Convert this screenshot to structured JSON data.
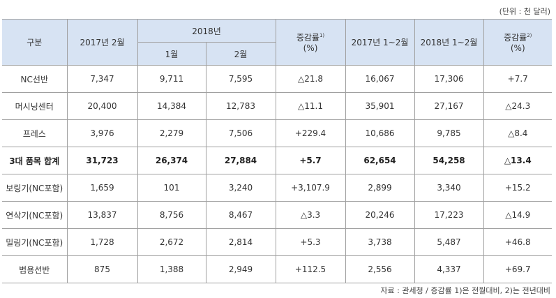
{
  "unit": "(단위 : 천 달러)",
  "headers": {
    "category": "구분",
    "feb2017": "2017년 2월",
    "y2018": "2018년",
    "jan": "1월",
    "feb": "2월",
    "change1": "증감률",
    "change1_sup": "1)",
    "pct": "(%)",
    "janfeb2017": "2017년 1~2월",
    "janfeb2018": "2018년 1~2월",
    "change2": "증감률",
    "change2_sup": "2)"
  },
  "rows": [
    [
      "NC선반",
      "7,347",
      "9,711",
      "7,595",
      "△21.8",
      "16,067",
      "17,306",
      "+7.7"
    ],
    [
      "머시닝센터",
      "20,400",
      "14,384",
      "12,783",
      "△11.1",
      "35,901",
      "27,167",
      "△24.3"
    ],
    [
      "프레스",
      "3,976",
      "2,279",
      "7,506",
      "+229.4",
      "10,686",
      "9,785",
      "△8.4"
    ],
    [
      "3대 품목 합계",
      "31,723",
      "26,374",
      "27,884",
      "+5.7",
      "62,654",
      "54,258",
      "△13.4"
    ],
    [
      "보링기(NC포함)",
      "1,659",
      "101",
      "3,240",
      "+3,107.9",
      "2,899",
      "3,340",
      "+15.2"
    ],
    [
      "연삭기(NC포함)",
      "13,837",
      "8,756",
      "8,467",
      "△3.3",
      "20,246",
      "17,223",
      "△14.9"
    ],
    [
      "밀링기(NC포함)",
      "1,728",
      "2,672",
      "2,814",
      "+5.3",
      "3,738",
      "5,487",
      "+46.8"
    ],
    [
      "범용선반",
      "875",
      "1,388",
      "2,949",
      "+112.5",
      "2,556",
      "4,337",
      "+69.7"
    ]
  ],
  "source": "자료 : 관세청 / 증감률 1)은 전월대비, 2)는 전년대비"
}
